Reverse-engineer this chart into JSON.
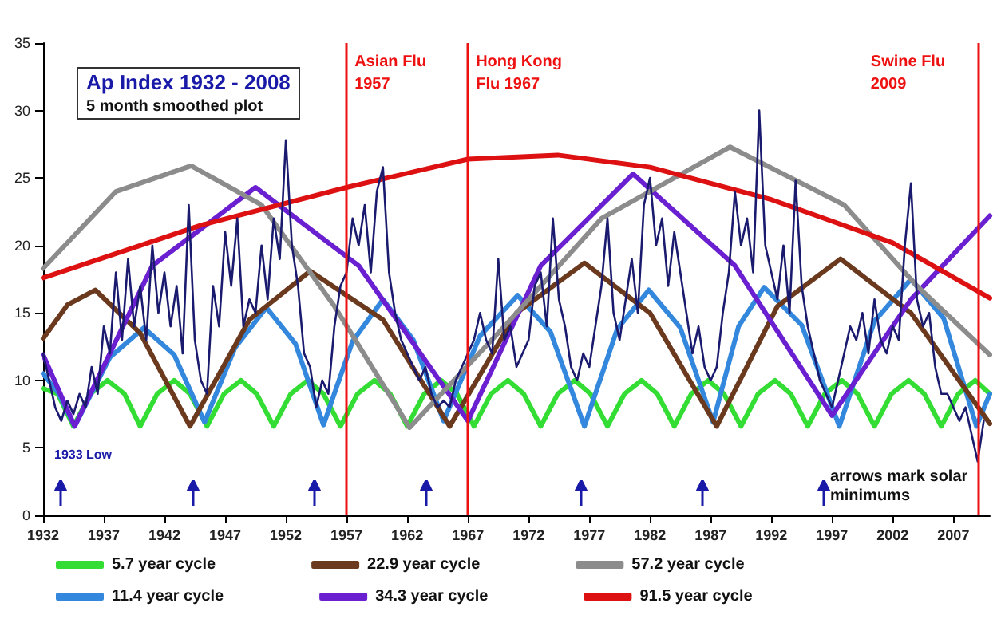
{
  "chart_data": {
    "type": "line",
    "title": "Ap Index 1932 - 2008",
    "subtitle": "5 month smoothed plot",
    "xlim": [
      1932,
      2010
    ],
    "xticks": [
      1932,
      1937,
      1942,
      1947,
      1952,
      1957,
      1962,
      1967,
      1972,
      1977,
      1982,
      1987,
      1992,
      1997,
      2002,
      2007
    ],
    "ylim": [
      0,
      35
    ],
    "yticks": [
      0,
      5,
      10,
      15,
      20,
      25,
      30,
      35
    ],
    "grid": false,
    "legend": "bottom",
    "marker": "none",
    "line_style": "solid",
    "series": [
      {
        "color": "#1a1a6e",
        "x": [
          1932,
          1932.5,
          1933,
          1933.5,
          1934,
          1934.5,
          1935,
          1935.5,
          1936,
          1936.5,
          1937,
          1937.5,
          1938,
          1938.5,
          1939,
          1939.5,
          1940,
          1940.5,
          1941,
          1941.5,
          1942,
          1942.5,
          1943,
          1943.5,
          1944,
          1944.5,
          1945,
          1945.5,
          1946,
          1946.5,
          1947,
          1947.5,
          1948,
          1948.5,
          1949,
          1949.5,
          1950,
          1950.5,
          1951,
          1951.5,
          1952,
          1952.5,
          1953,
          1953.5,
          1954,
          1954.5,
          1955,
          1955.5,
          1956,
          1956.5,
          1957,
          1957.5,
          1958,
          1958.5,
          1959,
          1959.5,
          1960,
          1960.5,
          1961,
          1961.5,
          1962,
          1962.5,
          1963,
          1963.5,
          1964,
          1964.5,
          1965,
          1965.5,
          1966,
          1966.5,
          1967,
          1967.5,
          1968,
          1968.5,
          1969,
          1969.5,
          1970,
          1970.5,
          1971,
          1971.5,
          1972,
          1972.5,
          1973,
          1973.5,
          1974,
          1974.5,
          1975,
          1975.5,
          1976,
          1976.5,
          1977,
          1977.5,
          1978,
          1978.5,
          1979,
          1979.5,
          1980,
          1980.5,
          1981,
          1981.5,
          1982,
          1982.5,
          1983,
          1983.5,
          1984,
          1984.5,
          1985,
          1985.5,
          1986,
          1986.5,
          1987,
          1987.5,
          1988,
          1988.5,
          1989,
          1989.5,
          1990,
          1990.5,
          1991,
          1991.5,
          1992,
          1992.5,
          1993,
          1993.5,
          1994,
          1994.5,
          1995,
          1995.5,
          1996,
          1996.5,
          1997,
          1997.5,
          1998,
          1998.5,
          1999,
          1999.5,
          2000,
          2000.5,
          2001,
          2001.5,
          2002,
          2002.5,
          2003,
          2003.5,
          2004,
          2004.5,
          2005,
          2005.5,
          2006,
          2006.5,
          2007,
          2007.5,
          2008,
          2008.5,
          2009,
          2009.5
        ],
        "values": [
          12,
          10,
          8,
          7,
          8.5,
          7.5,
          9,
          8,
          11,
          9,
          14,
          12,
          18,
          13,
          19,
          14,
          17,
          13,
          20,
          15,
          18,
          14,
          17,
          12,
          23,
          13,
          10,
          9,
          17,
          14,
          21,
          17,
          22,
          14,
          16,
          15,
          20,
          16,
          22,
          19,
          27.8,
          20,
          17,
          12,
          11,
          8,
          10,
          9,
          14,
          17,
          18,
          22,
          20,
          23,
          18,
          24,
          25.8,
          18,
          15,
          13,
          12,
          11,
          10,
          11,
          9,
          8,
          8.5,
          8,
          10,
          11,
          12,
          13,
          15,
          13,
          12,
          19,
          13,
          14,
          11,
          12,
          13,
          17,
          18,
          14,
          22,
          16,
          14,
          11,
          10,
          12,
          11,
          14,
          17,
          22,
          15,
          13,
          16,
          19,
          15,
          23,
          25,
          20,
          22,
          17,
          21,
          18,
          15,
          12,
          14,
          11,
          10,
          11,
          15,
          18,
          24,
          20,
          22,
          18,
          30,
          20,
          18,
          16,
          20,
          15,
          24.8,
          17,
          14,
          12,
          10,
          9,
          8,
          10,
          12,
          14,
          13,
          15,
          12,
          16,
          13,
          12,
          14,
          13,
          20,
          24.6,
          16,
          14,
          15,
          11,
          9,
          9,
          8,
          7,
          8,
          6,
          4,
          7
        ]
      },
      {
        "name": "5.7 year cycle",
        "color": "#33dd33",
        "x": [
          1932,
          1933.2,
          1934.5,
          1935.9,
          1937.3,
          1938.7,
          1940,
          1941.4,
          1942.8,
          1944.1,
          1945.5,
          1946.9,
          1948.3,
          1949.6,
          1951,
          1952.4,
          1953.8,
          1955.1,
          1956.5,
          1957.9,
          1959.3,
          1960.6,
          1962,
          1963.4,
          1964.8,
          1966.1,
          1967.5,
          1968.9,
          1970.3,
          1971.6,
          1973,
          1974.4,
          1975.8,
          1977.1,
          1978.5,
          1979.9,
          1981.3,
          1982.6,
          1984,
          1985.4,
          1986.8,
          1988.1,
          1989.5,
          1990.9,
          1992.3,
          1993.6,
          1995,
          1996.4,
          1997.8,
          1999.1,
          2000.5,
          2001.9,
          2003.3,
          2004.6,
          2006,
          2007.4,
          2008.8,
          2010
        ],
        "values": [
          9.4,
          9,
          6.6,
          9,
          10,
          9,
          6.6,
          9,
          10,
          9,
          6.6,
          9,
          10,
          9,
          6.6,
          9,
          10,
          9,
          6.6,
          9,
          10,
          9,
          6.6,
          9,
          10,
          9,
          6.6,
          9,
          10,
          9,
          6.6,
          9,
          10,
          9,
          6.6,
          9,
          10,
          9,
          6.6,
          9,
          10,
          9,
          6.6,
          9,
          10,
          9,
          6.6,
          9,
          10,
          9,
          6.6,
          9,
          10,
          9,
          6.6,
          9,
          10,
          9
        ]
      },
      {
        "name": "11.4 year cycle",
        "color": "#3388dd",
        "x": [
          1932,
          1933.3,
          1934.6,
          1937.5,
          1940.3,
          1942.8,
          1945.3,
          1947.8,
          1950.4,
          1952.8,
          1955.1,
          1957.5,
          1960,
          1962.5,
          1965,
          1968,
          1971.1,
          1973.8,
          1976.6,
          1979.3,
          1981.9,
          1984.5,
          1987.2,
          1989.3,
          1991.4,
          1994.5,
          1997.6,
          2000.5,
          2003.5,
          2006.2,
          2008.9,
          2010
        ],
        "values": [
          10.5,
          9,
          6.6,
          11.7,
          13.9,
          11.9,
          6.9,
          12.4,
          15.4,
          12.7,
          6.7,
          12.9,
          16,
          13,
          7,
          13.3,
          16.3,
          13.6,
          6.6,
          13.8,
          16.7,
          13.9,
          6.9,
          14,
          16.9,
          14.1,
          6.6,
          14.4,
          17.5,
          14.6,
          6.6,
          9
        ]
      },
      {
        "name": "22.9 year cycle",
        "color": "#6b3a1e",
        "x": [
          1932,
          1934,
          1936.3,
          1940,
          1944.1,
          1949,
          1954,
          1960,
          1965.5,
          1971,
          1976.6,
          1982,
          1987.5,
          1992.5,
          1997.7,
          2003.5,
          2010
        ],
        "values": [
          13.1,
          15.6,
          16.7,
          13.5,
          6.6,
          14.5,
          18.1,
          14.5,
          6.6,
          15,
          18.7,
          15,
          6.6,
          15.5,
          19,
          15,
          6.8
        ]
      },
      {
        "name": "34.3 year cycle",
        "color": "#6a1fd0",
        "x": [
          1932,
          1934.6,
          1941,
          1949.5,
          1958,
          1967,
          1973,
          1980.6,
          1989,
          1997,
          2003.5,
          2010
        ],
        "values": [
          11.9,
          6.6,
          18.5,
          24.3,
          18.5,
          7,
          18.5,
          25.3,
          18.5,
          7.4,
          16,
          22.2
        ]
      },
      {
        "name": "57.2 year cycle",
        "color": "#8c8c8c",
        "x": [
          1932,
          1938,
          1944.2,
          1950,
          1956,
          1962.2,
          1970,
          1978,
          1988.6,
          1998,
          2004,
          2010
        ],
        "values": [
          18.3,
          24,
          25.9,
          23,
          15.5,
          6.5,
          14,
          22,
          27.3,
          23,
          17,
          11.9
        ]
      },
      {
        "name": "91.5 year cycle",
        "color": "#dd1111",
        "x": [
          1932,
          1945,
          1957,
          1967,
          1974.4,
          1982,
          1992,
          2002,
          2010
        ],
        "values": [
          17.6,
          21.5,
          24.3,
          26.4,
          26.7,
          25.8,
          23.4,
          20.2,
          16.1
        ]
      }
    ],
    "ref_lines": [
      {
        "axis": "x",
        "value": 1957,
        "label": "Asian Flu 1957",
        "color": "#ee1111"
      },
      {
        "axis": "x",
        "value": 1967,
        "label": "Hong Kong Flu 1967",
        "color": "#ee1111"
      },
      {
        "axis": "x",
        "value": 2009,
        "label": "Swine Flu 2009",
        "color": "#ee1111"
      }
    ],
    "annotations": [
      "1933 Low",
      "arrows mark solar minimums"
    ]
  }
}
